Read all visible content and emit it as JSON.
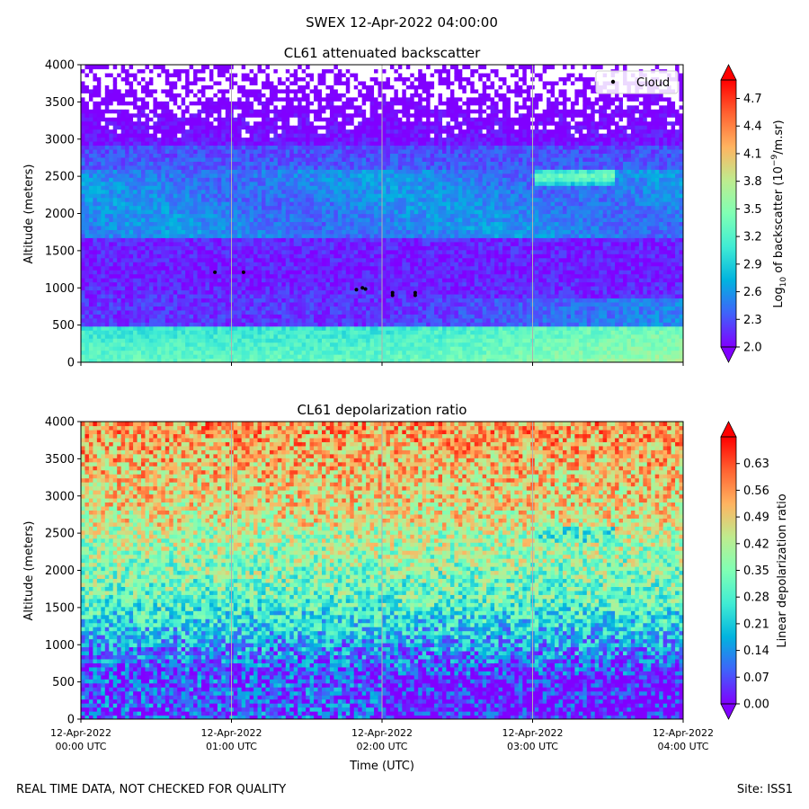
{
  "suptitle": "SWEX 12-Apr-2022 04:00:00",
  "footer": {
    "left": "REAL TIME DATA, NOT CHECKED FOR QUALITY",
    "right": "Site: ISS1"
  },
  "colors": {
    "rainbow": [
      "#8000ff",
      "#4062fa",
      "#01b3df",
      "#40ecd4",
      "#80ffb4",
      "#bfeb8e",
      "#ffb360",
      "#ff6231",
      "#ff0000"
    ],
    "cloud": "#000000",
    "grid": "#b0b0b0"
  },
  "chart_data": [
    {
      "type": "heatmap",
      "title": "CL61 attenuated backscatter",
      "ylabel": "Altitude (meters)",
      "xlabel": "",
      "ylim": [
        0,
        4000
      ],
      "yticks": [
        "0",
        "500",
        "1000",
        "1500",
        "2000",
        "2500",
        "3000",
        "3500",
        "4000"
      ],
      "ytick_values": [
        0,
        500,
        1000,
        1500,
        2000,
        2500,
        3000,
        3500,
        4000
      ],
      "xlim_hours": [
        0,
        4
      ],
      "xticks_hours": [
        0,
        1,
        2,
        3,
        4
      ],
      "colorbar": {
        "label_main": "Log",
        "label_sub": "10",
        "label_mid": " of backscatter (10",
        "label_sup": "−9",
        "label_end": "/m.sr)",
        "range": [
          2.0,
          4.9
        ],
        "ticks": [
          "2.0",
          "2.3",
          "2.6",
          "2.9",
          "3.2",
          "3.5",
          "3.8",
          "4.1",
          "4.4",
          "4.7"
        ],
        "tick_values": [
          2.0,
          2.3,
          2.6,
          2.9,
          3.2,
          3.5,
          3.8,
          4.1,
          4.4,
          4.7
        ],
        "extend": "both"
      },
      "legend": {
        "label": "Cloud",
        "location": "top-right"
      },
      "cloud_points": [
        {
          "t": 0.89,
          "alt": 1210
        },
        {
          "t": 1.08,
          "alt": 1210
        },
        {
          "t": 1.83,
          "alt": 975
        },
        {
          "t": 1.87,
          "alt": 1000
        },
        {
          "t": 1.89,
          "alt": 985
        },
        {
          "t": 2.07,
          "alt": 935
        },
        {
          "t": 2.07,
          "alt": 900
        },
        {
          "t": 2.22,
          "alt": 935
        },
        {
          "t": 2.22,
          "alt": 900
        }
      ]
    },
    {
      "type": "heatmap",
      "title": "CL61 depolarization ratio",
      "ylabel": "Altitude (meters)",
      "xlabel": "Time (UTC)",
      "ylim": [
        0,
        4000
      ],
      "yticks": [
        "0",
        "500",
        "1000",
        "1500",
        "2000",
        "2500",
        "3000",
        "3500",
        "4000"
      ],
      "ytick_values": [
        0,
        500,
        1000,
        1500,
        2000,
        2500,
        3000,
        3500,
        4000
      ],
      "xlim_hours": [
        0,
        4
      ],
      "xticks_hours": [
        0,
        1,
        2,
        3,
        4
      ],
      "xtick_labels_date": [
        "12-Apr-2022",
        "12-Apr-2022",
        "12-Apr-2022",
        "12-Apr-2022",
        "12-Apr-2022"
      ],
      "xtick_labels_time": [
        "00:00 UTC",
        "01:00 UTC",
        "02:00 UTC",
        "03:00 UTC",
        "04:00 UTC"
      ],
      "colorbar": {
        "label": "Linear depolarization ratio",
        "range": [
          0.0,
          0.7
        ],
        "ticks": [
          "0.00",
          "0.07",
          "0.14",
          "0.21",
          "0.28",
          "0.35",
          "0.42",
          "0.49",
          "0.56",
          "0.63"
        ],
        "tick_values": [
          0.0,
          0.07,
          0.14,
          0.21,
          0.28,
          0.35,
          0.42,
          0.49,
          0.56,
          0.63
        ],
        "extend": "both"
      }
    }
  ]
}
